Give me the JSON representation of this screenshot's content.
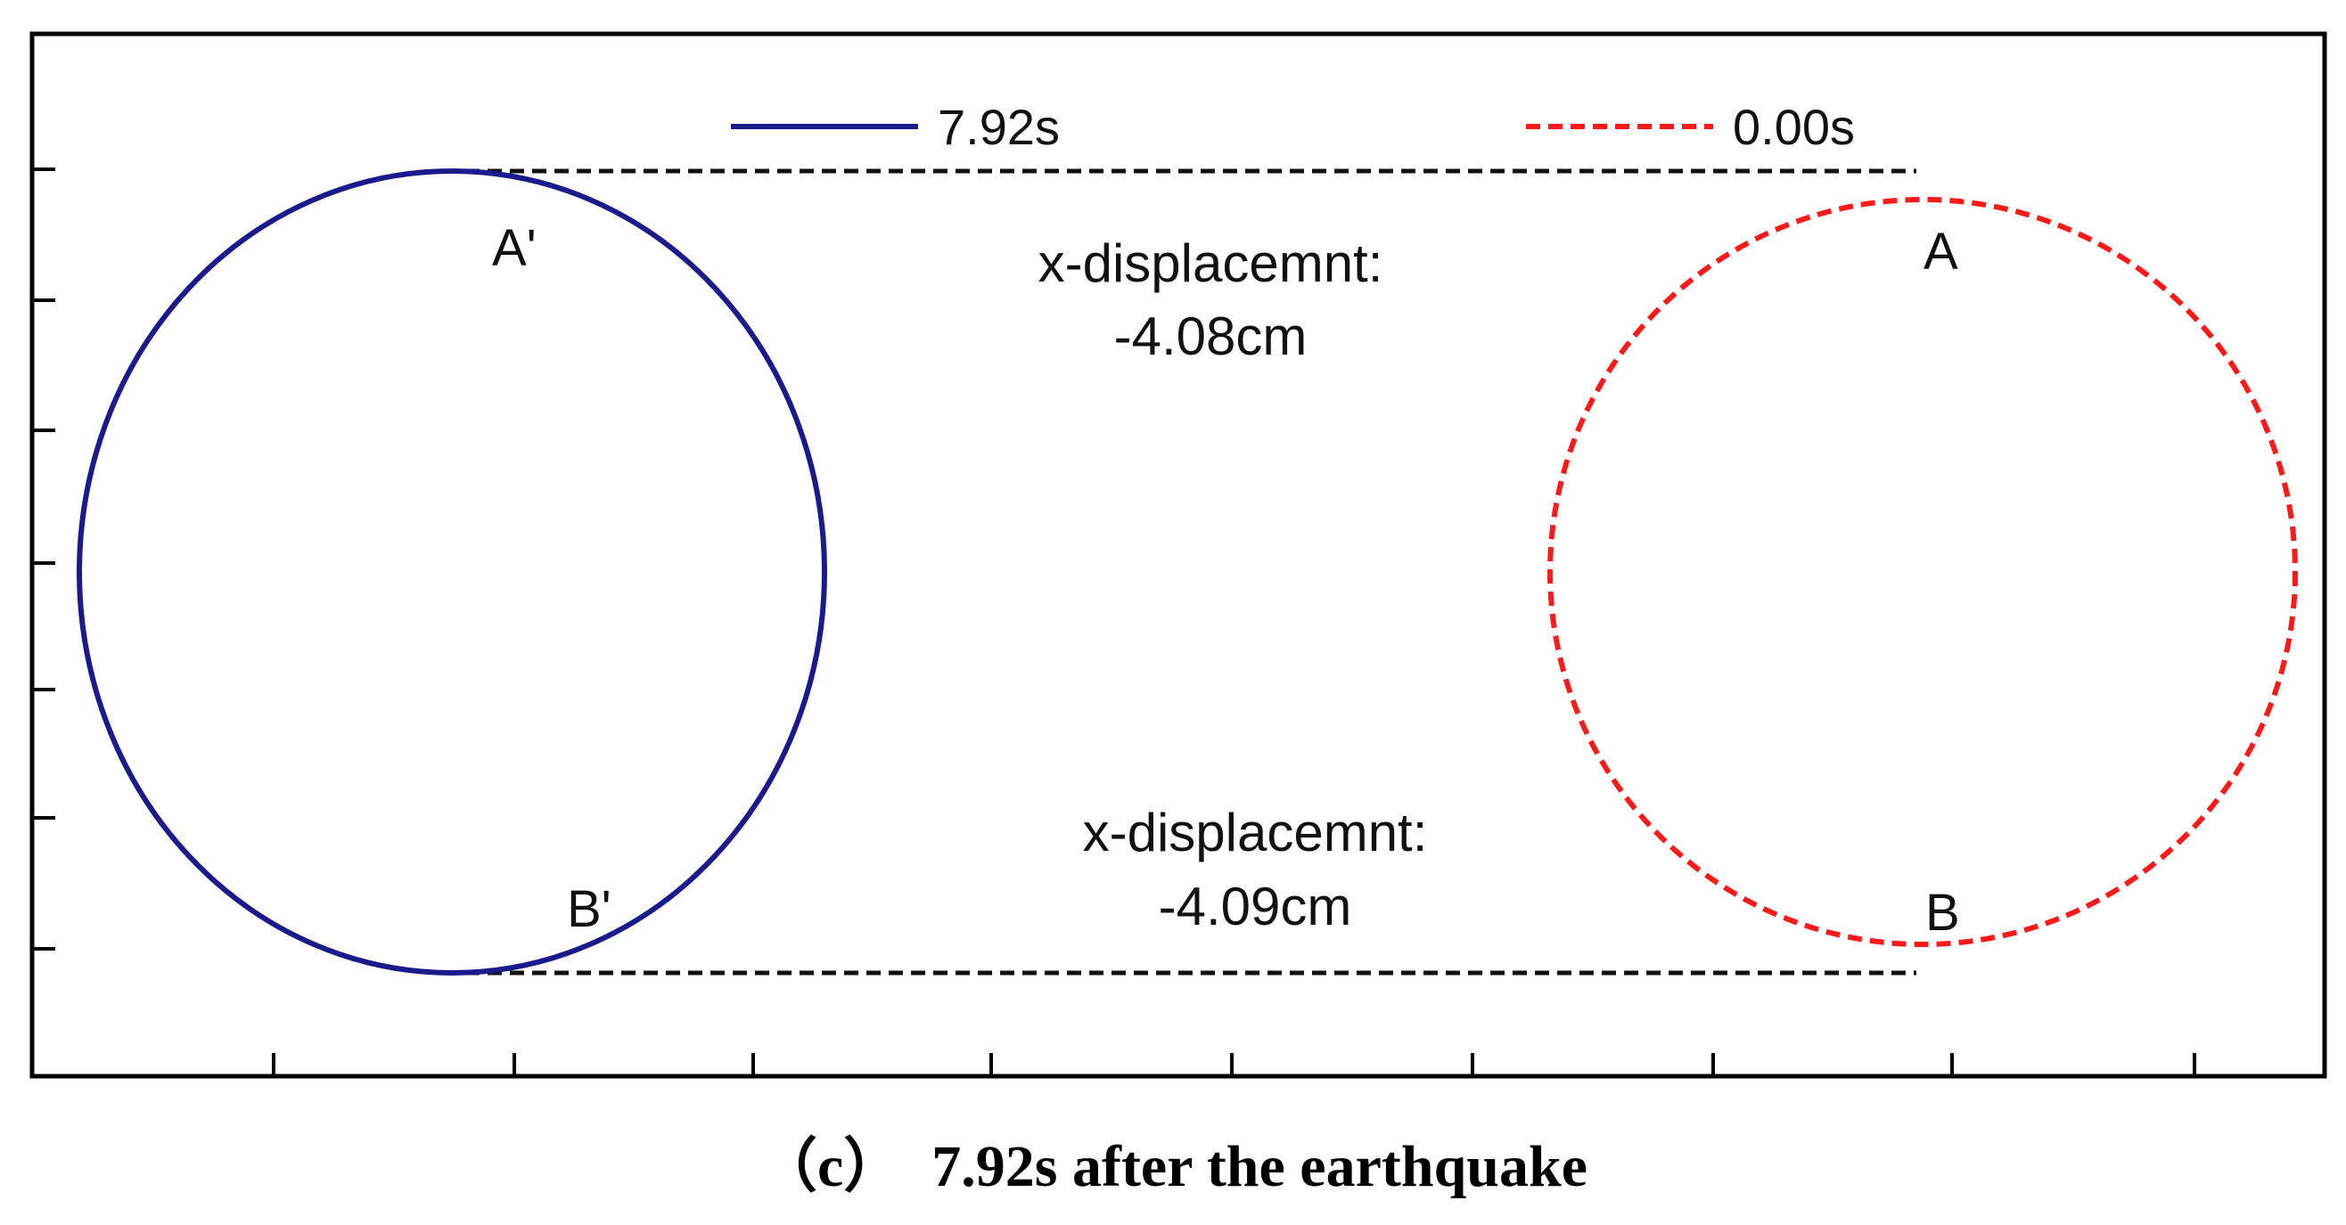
{
  "legend": [
    {
      "label": "7.92s",
      "color": "#1a1a8c",
      "style": "solid"
    },
    {
      "label": "0.00s",
      "color": "#ff1a1a",
      "style": "dashed"
    }
  ],
  "points": {
    "a_prime": "A'",
    "b_prime": "B'",
    "a": "A",
    "b": "B"
  },
  "annotations": {
    "top_title": "x-displacemnt:",
    "top_value": "-4.08cm",
    "bottom_title": "x-displacemnt:",
    "bottom_value": "-4.09cm"
  },
  "caption": "（c）  7.92s after the earthquake"
}
